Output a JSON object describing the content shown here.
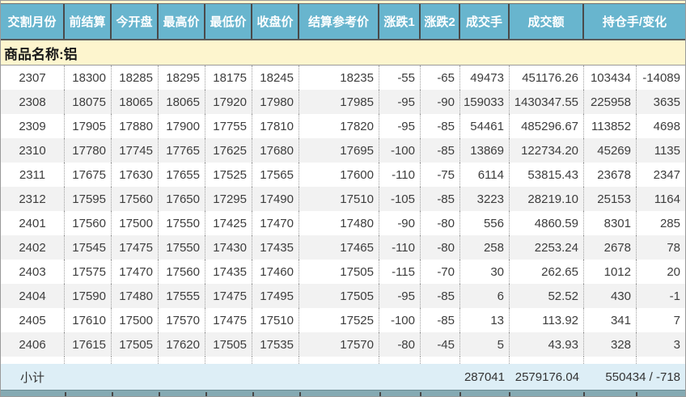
{
  "table": {
    "columns": [
      "交割月份",
      "前结算",
      "今开盘",
      "最高价",
      "最低价",
      "收盘价",
      "结算参考价",
      "涨跌1",
      "涨跌2",
      "成交手",
      "成交额",
      "持仓手/变化"
    ],
    "commodity_label": "商品名称:铝",
    "rows": [
      [
        "2307",
        "18300",
        "18285",
        "18295",
        "18175",
        "18245",
        "18235",
        "-55",
        "-65",
        "49473",
        "451176.26",
        "103434",
        "-14089"
      ],
      [
        "2308",
        "18075",
        "18065",
        "18065",
        "17920",
        "17980",
        "17985",
        "-95",
        "-90",
        "159033",
        "1430347.55",
        "225958",
        "3635"
      ],
      [
        "2309",
        "17905",
        "17880",
        "17900",
        "17755",
        "17810",
        "17820",
        "-95",
        "-85",
        "54461",
        "485296.67",
        "113852",
        "4698"
      ],
      [
        "2310",
        "17780",
        "17745",
        "17765",
        "17625",
        "17680",
        "17695",
        "-100",
        "-85",
        "13869",
        "122734.20",
        "45269",
        "1135"
      ],
      [
        "2311",
        "17675",
        "17630",
        "17655",
        "17525",
        "17565",
        "17600",
        "-110",
        "-75",
        "6114",
        "53815.43",
        "23678",
        "2347"
      ],
      [
        "2312",
        "17595",
        "17560",
        "17650",
        "17295",
        "17490",
        "17510",
        "-105",
        "-85",
        "3223",
        "28219.10",
        "25153",
        "1164"
      ],
      [
        "2401",
        "17560",
        "17500",
        "17550",
        "17425",
        "17470",
        "17480",
        "-90",
        "-80",
        "556",
        "4860.59",
        "8301",
        "285"
      ],
      [
        "2402",
        "17545",
        "17475",
        "17550",
        "17430",
        "17435",
        "17465",
        "-110",
        "-80",
        "258",
        "2253.24",
        "2678",
        "78"
      ],
      [
        "2403",
        "17575",
        "17470",
        "17560",
        "17435",
        "17460",
        "17505",
        "-115",
        "-70",
        "30",
        "262.65",
        "1012",
        "20"
      ],
      [
        "2404",
        "17590",
        "17480",
        "17555",
        "17475",
        "17495",
        "17505",
        "-95",
        "-85",
        "6",
        "52.52",
        "430",
        "-1"
      ],
      [
        "2405",
        "17610",
        "17500",
        "17570",
        "17475",
        "17510",
        "17525",
        "-100",
        "-85",
        "13",
        "113.92",
        "341",
        "7"
      ],
      [
        "2406",
        "17615",
        "17505",
        "17620",
        "17505",
        "17535",
        "17570",
        "-80",
        "-45",
        "5",
        "43.93",
        "328",
        "3"
      ]
    ],
    "subtotal": {
      "label": "小计",
      "volume": "287041",
      "turnover": "2579176.04",
      "position_change": "550434 / -718"
    }
  },
  "colors": {
    "header_bg": "#68b5ce",
    "header_text": "#ffffff",
    "commodity_bg": "#fdf5ce",
    "alt_row_bg": "#f2f2f2",
    "subtotal_bg": "#ddeef6",
    "bottom_strip_bg": "#85aab3",
    "data_text": "#3d3d3d"
  }
}
